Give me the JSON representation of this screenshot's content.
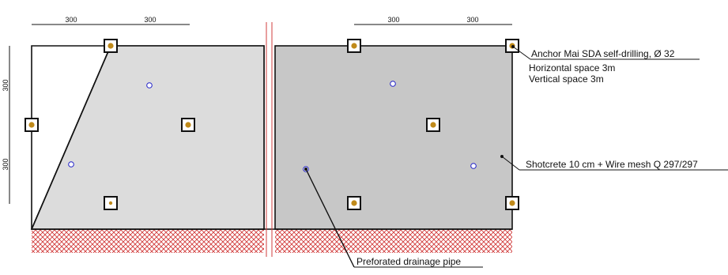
{
  "dimensions": {
    "top_left": [
      "300",
      "300"
    ],
    "top_right": [
      "300",
      "300"
    ],
    "left_side": [
      "300",
      "300"
    ]
  },
  "labels": {
    "anchor": {
      "title": "Anchor Mai SDA self-drilling, Ø 32",
      "line2": "Horizontal space 3m",
      "line3": "Vertical space 3m"
    },
    "shotcrete": "Shotcrete 10 cm + Wire mesh Q 297/297",
    "drainage": "Preforated drainage pipe"
  },
  "colors": {
    "left_panel_fill": "#dcdcdc",
    "right_panel_fill": "#c7c7c7",
    "anchor_dot": "#c08a1a",
    "drain_stroke": "#2020c8",
    "hatch": "#d23c3c",
    "break_line": "#d23c3c"
  }
}
